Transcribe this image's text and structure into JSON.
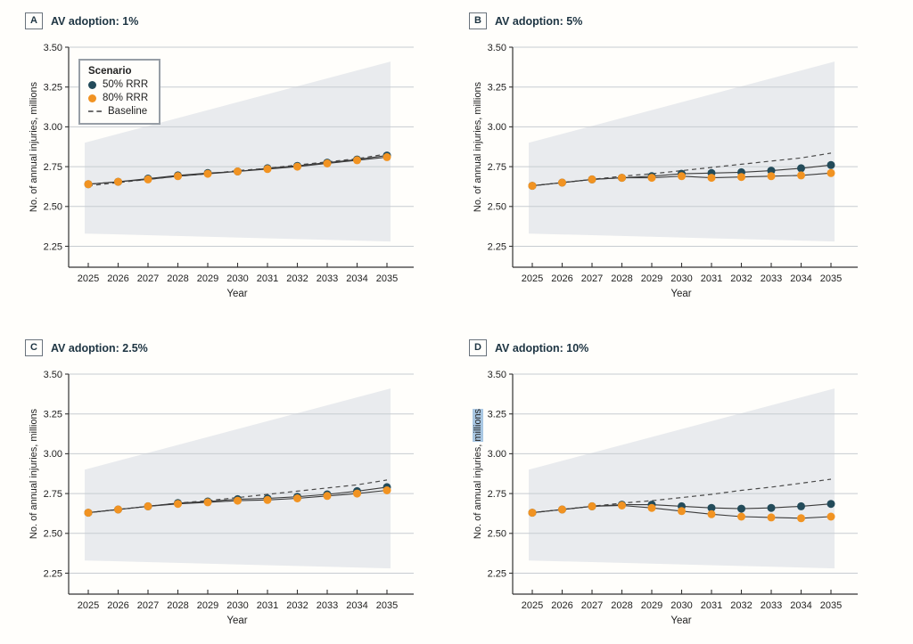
{
  "figure": {
    "background": "#fffefb",
    "colors": {
      "navy": "#234b5a",
      "orange": "#f19322",
      "series_line": "#3b3b3b",
      "baseline": "#4a4a4a",
      "band": "#e9ebee",
      "grid": "#c7ccd1",
      "axis": "#333333",
      "text": "#222222",
      "title": "#1d3442",
      "highlight_bg": "#a9c7e2"
    },
    "legend": {
      "title": "Scenario",
      "items": [
        {
          "label": "50% RRR",
          "marker": "dot",
          "color": "#234b5a"
        },
        {
          "label": "80% RRR",
          "marker": "dot",
          "color": "#f19322"
        },
        {
          "label": "Baseline",
          "marker": "dash",
          "color": "#6e6e6e"
        }
      ],
      "position": "top-left-inside-panel-A"
    }
  },
  "chart_data": [
    {
      "type": "line",
      "panel_label": "A",
      "title": "AV adoption: 1%",
      "xlabel": "Year",
      "ylabel": "No. of annual injuries, millions",
      "x": [
        2025,
        2026,
        2027,
        2028,
        2029,
        2030,
        2031,
        2032,
        2033,
        2034,
        2035
      ],
      "yticks": [
        2.25,
        2.5,
        2.75,
        3.0,
        3.25,
        3.5
      ],
      "ylim": [
        2.12,
        3.5
      ],
      "grid": true,
      "band": {
        "x": [
          2025,
          2035
        ],
        "top": [
          2.9,
          3.41
        ],
        "bottom": [
          2.33,
          2.28
        ]
      },
      "series": [
        {
          "name": "50% RRR",
          "color": "#234b5a",
          "values": [
            2.64,
            2.655,
            2.675,
            2.695,
            2.71,
            2.72,
            2.74,
            2.755,
            2.775,
            2.795,
            2.82
          ]
        },
        {
          "name": "80% RRR",
          "color": "#f19322",
          "values": [
            2.64,
            2.655,
            2.67,
            2.69,
            2.705,
            2.72,
            2.735,
            2.75,
            2.77,
            2.79,
            2.81
          ]
        },
        {
          "name": "Baseline",
          "color": "#4a4a4a",
          "dashed": true,
          "values": [
            2.63,
            2.65,
            2.67,
            2.69,
            2.705,
            2.725,
            2.74,
            2.76,
            2.78,
            2.8,
            2.83
          ]
        }
      ],
      "show_legend": true
    },
    {
      "type": "line",
      "panel_label": "B",
      "title": "AV adoption: 5%",
      "xlabel": "Year",
      "ylabel": "No. of annual injuries, millions",
      "x": [
        2025,
        2026,
        2027,
        2028,
        2029,
        2030,
        2031,
        2032,
        2033,
        2034,
        2035
      ],
      "yticks": [
        2.25,
        2.5,
        2.75,
        3.0,
        3.25,
        3.5
      ],
      "ylim": [
        2.12,
        3.5
      ],
      "grid": true,
      "band": {
        "x": [
          2025,
          2035
        ],
        "top": [
          2.9,
          3.41
        ],
        "bottom": [
          2.33,
          2.28
        ]
      },
      "series": [
        {
          "name": "50% RRR",
          "color": "#234b5a",
          "values": [
            2.63,
            2.65,
            2.67,
            2.68,
            2.69,
            2.705,
            2.71,
            2.715,
            2.725,
            2.74,
            2.76
          ]
        },
        {
          "name": "80% RRR",
          "color": "#f19322",
          "values": [
            2.63,
            2.65,
            2.67,
            2.68,
            2.68,
            2.69,
            2.68,
            2.685,
            2.69,
            2.695,
            2.71
          ]
        },
        {
          "name": "Baseline",
          "color": "#4a4a4a",
          "dashed": true,
          "values": [
            2.63,
            2.65,
            2.67,
            2.69,
            2.705,
            2.725,
            2.745,
            2.765,
            2.785,
            2.805,
            2.835
          ]
        }
      ],
      "show_legend": false
    },
    {
      "type": "line",
      "panel_label": "C",
      "title": "AV adoption: 2.5%",
      "xlabel": "Year",
      "ylabel": "No. of annual injuries, millions",
      "x": [
        2025,
        2026,
        2027,
        2028,
        2029,
        2030,
        2031,
        2032,
        2033,
        2034,
        2035
      ],
      "yticks": [
        2.25,
        2.5,
        2.75,
        3.0,
        3.25,
        3.5
      ],
      "ylim": [
        2.12,
        3.5
      ],
      "grid": true,
      "band": {
        "x": [
          2025,
          2035
        ],
        "top": [
          2.9,
          3.41
        ],
        "bottom": [
          2.33,
          2.28
        ]
      },
      "series": [
        {
          "name": "50% RRR",
          "color": "#234b5a",
          "values": [
            2.63,
            2.65,
            2.67,
            2.69,
            2.7,
            2.715,
            2.72,
            2.73,
            2.745,
            2.765,
            2.79
          ]
        },
        {
          "name": "80% RRR",
          "color": "#f19322",
          "values": [
            2.63,
            2.65,
            2.67,
            2.685,
            2.695,
            2.705,
            2.71,
            2.72,
            2.735,
            2.75,
            2.77
          ]
        },
        {
          "name": "Baseline",
          "color": "#4a4a4a",
          "dashed": true,
          "values": [
            2.63,
            2.65,
            2.67,
            2.69,
            2.705,
            2.725,
            2.745,
            2.765,
            2.785,
            2.805,
            2.835
          ]
        }
      ],
      "show_legend": false
    },
    {
      "type": "line",
      "panel_label": "D",
      "title": "AV adoption: 10%",
      "xlabel": "Year",
      "ylabel": "No. of annual injuries, millions",
      "ylabel_highlight": "millions",
      "x": [
        2025,
        2026,
        2027,
        2028,
        2029,
        2030,
        2031,
        2032,
        2033,
        2034,
        2035
      ],
      "yticks": [
        2.25,
        2.5,
        2.75,
        3.0,
        3.25,
        3.5
      ],
      "ylim": [
        2.12,
        3.5
      ],
      "grid": true,
      "band": {
        "x": [
          2025,
          2035
        ],
        "top": [
          2.9,
          3.41
        ],
        "bottom": [
          2.33,
          2.28
        ]
      },
      "series": [
        {
          "name": "50% RRR",
          "color": "#234b5a",
          "values": [
            2.63,
            2.65,
            2.67,
            2.68,
            2.68,
            2.67,
            2.66,
            2.655,
            2.66,
            2.67,
            2.685
          ]
        },
        {
          "name": "80% RRR",
          "color": "#f19322",
          "values": [
            2.63,
            2.65,
            2.67,
            2.675,
            2.66,
            2.64,
            2.62,
            2.605,
            2.6,
            2.595,
            2.605
          ]
        },
        {
          "name": "Baseline",
          "color": "#4a4a4a",
          "dashed": true,
          "values": [
            2.63,
            2.65,
            2.67,
            2.69,
            2.705,
            2.725,
            2.745,
            2.77,
            2.79,
            2.815,
            2.84
          ]
        }
      ],
      "show_legend": false
    }
  ]
}
